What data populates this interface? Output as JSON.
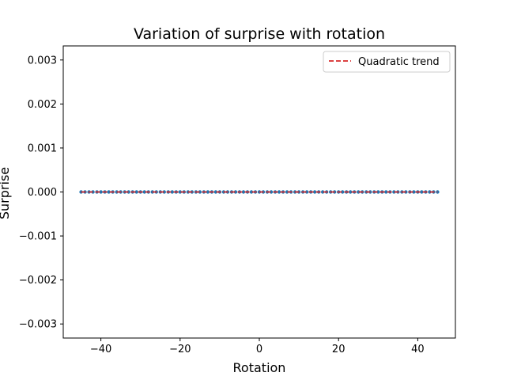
{
  "chart_data": {
    "type": "scatter",
    "title": "Variation of surprise with rotation",
    "xlabel": "Rotation",
    "ylabel": "Surprise",
    "xlim": [
      -49.5,
      49.5
    ],
    "ylim": [
      -0.00332,
      0.00332
    ],
    "xticks": [
      -40,
      -20,
      0,
      20,
      40
    ],
    "xtick_labels": [
      "−40",
      "−20",
      "0",
      "20",
      "40"
    ],
    "yticks": [
      -0.003,
      -0.002,
      -0.001,
      0.0,
      0.001,
      0.002,
      0.003
    ],
    "ytick_labels": [
      "−0.003",
      "−0.002",
      "−0.001",
      "0.000",
      "0.001",
      "0.002",
      "0.003"
    ],
    "grid": false,
    "legend_position": "top-right",
    "series": [
      {
        "kind": "scatter",
        "color": "#1f77b4",
        "x_range": [
          -45,
          45
        ],
        "x_step": 1,
        "y_constant": 0.0
      },
      {
        "kind": "line",
        "name": "Quadratic trend",
        "color": "#d62728",
        "linestyle": "dashed",
        "x": [
          -45,
          45
        ],
        "y": [
          0.0,
          0.0
        ]
      }
    ]
  }
}
